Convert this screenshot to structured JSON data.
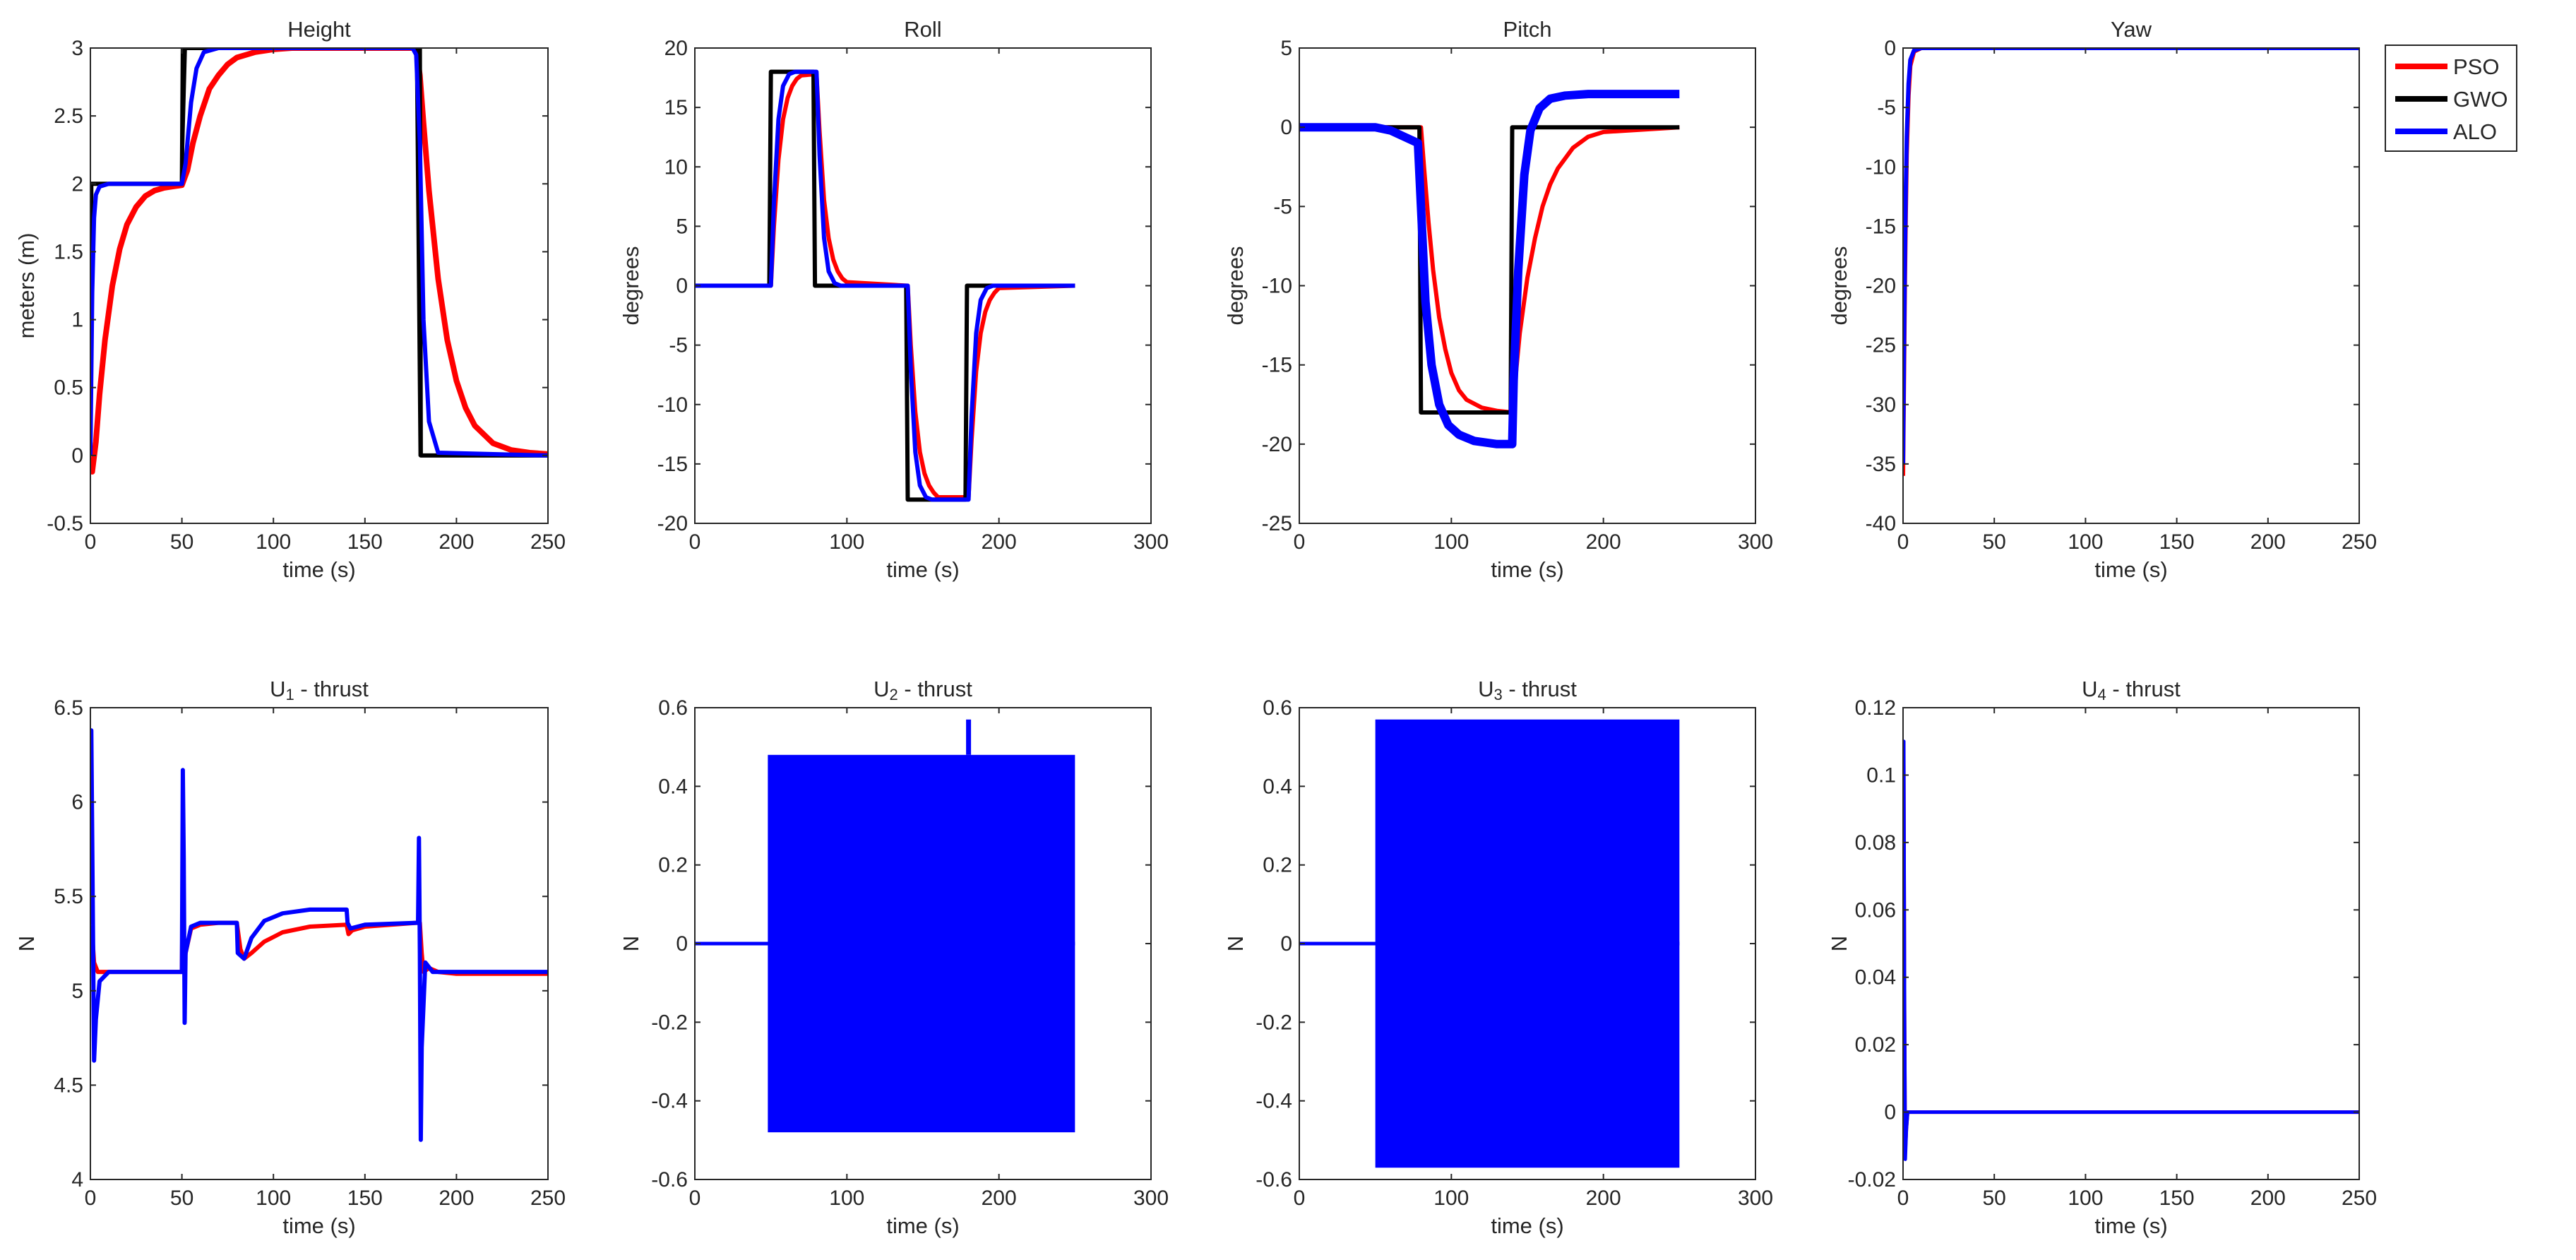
{
  "legend": {
    "placement": "outside top-right",
    "entries": [
      {
        "name": "PSO",
        "color": "#ff0000"
      },
      {
        "name": "GWO",
        "color": "#000000"
      },
      {
        "name": "ALO",
        "color": "#0000ff"
      }
    ]
  },
  "chart_data": [
    {
      "type": "line",
      "title": "Height",
      "xlabel": "time (s)",
      "ylabel": "meters (m)",
      "xlim": [
        0,
        250
      ],
      "ylim": [
        -0.5,
        3
      ],
      "xticks": [
        0,
        50,
        100,
        150,
        200,
        250
      ],
      "yticks": [
        -0.5,
        0,
        0.5,
        1,
        1.5,
        2,
        2.5,
        3
      ],
      "series": [
        {
          "name": "PSO",
          "color": "#ff0000",
          "width": 8,
          "x": [
            0,
            1,
            3,
            5,
            8,
            12,
            16,
            20,
            25,
            30,
            35,
            40,
            45,
            50,
            53,
            56,
            60,
            65,
            70,
            75,
            80,
            90,
            100,
            110,
            120,
            130,
            140,
            150,
            160,
            170,
            178,
            180,
            182,
            185,
            190,
            195,
            200,
            205,
            210,
            220,
            230,
            240,
            250
          ],
          "y": [
            -0.05,
            -0.12,
            0.1,
            0.45,
            0.85,
            1.25,
            1.52,
            1.7,
            1.83,
            1.91,
            1.95,
            1.97,
            1.98,
            1.99,
            2.1,
            2.3,
            2.5,
            2.7,
            2.8,
            2.88,
            2.93,
            2.97,
            2.99,
            3,
            3,
            3,
            3,
            3,
            3,
            3,
            3,
            2.8,
            2.45,
            1.95,
            1.3,
            0.85,
            0.55,
            0.35,
            0.22,
            0.09,
            0.04,
            0.02,
            0.01
          ]
        },
        {
          "name": "GWO",
          "color": "#000000",
          "width": 6,
          "x": [
            0,
            0.5,
            50,
            50.5,
            180,
            180.5,
            250
          ],
          "y": [
            0,
            2,
            2,
            3,
            3,
            0,
            0
          ]
        },
        {
          "name": "GWO",
          "color": "#000000",
          "width": 4,
          "x": [
            0,
            2,
            50,
            52,
            178,
            180,
            250
          ],
          "y": [
            2,
            2,
            2,
            3,
            3,
            0,
            0
          ]
        },
        {
          "name": "ALO",
          "color": "#0000ff",
          "width": 6,
          "x": [
            0,
            1,
            2,
            3,
            5,
            10,
            30,
            50,
            52,
            55,
            58,
            62,
            70,
            100,
            150,
            176,
            178,
            180,
            182,
            185,
            190,
            250
          ],
          "y": [
            0,
            1.2,
            1.75,
            1.92,
            1.98,
            2,
            2,
            2,
            2.15,
            2.6,
            2.85,
            2.97,
            3,
            3,
            3,
            3,
            2.95,
            2.3,
            1.0,
            0.25,
            0.02,
            0
          ]
        }
      ]
    },
    {
      "type": "line",
      "title": "Roll",
      "xlabel": "time (s)",
      "ylabel": "degrees",
      "xlim": [
        0,
        300
      ],
      "ylim": [
        -20,
        20
      ],
      "xticks": [
        0,
        100,
        200,
        300
      ],
      "yticks": [
        -20,
        -15,
        -10,
        -5,
        0,
        5,
        10,
        15,
        20
      ],
      "series": [
        {
          "name": "PSO",
          "color": "#ff0000",
          "width": 6,
          "x": [
            0,
            50,
            52,
            55,
            58,
            61,
            64,
            67,
            70,
            80,
            82,
            85,
            88,
            91,
            94,
            97,
            100,
            140,
            142,
            145,
            148,
            151,
            154,
            157,
            160,
            180,
            182,
            185,
            188,
            191,
            194,
            197,
            200,
            250
          ],
          "y": [
            0,
            0,
            5,
            10.6,
            14,
            15.8,
            16.8,
            17.4,
            17.7,
            17.8,
            13,
            7.2,
            4,
            2.2,
            1.2,
            0.6,
            0.3,
            0,
            -5,
            -10.6,
            -14,
            -15.8,
            -16.8,
            -17.4,
            -17.8,
            -17.8,
            -13,
            -7.2,
            -4,
            -2.2,
            -1.2,
            -0.6,
            -0.2,
            0
          ]
        },
        {
          "name": "GWO",
          "color": "#000000",
          "width": 6,
          "x": [
            0,
            49,
            50,
            78,
            79,
            139,
            140,
            178,
            179,
            250
          ],
          "y": [
            0,
            0,
            18,
            18,
            0,
            0,
            -18,
            -18,
            0,
            0
          ]
        },
        {
          "name": "ALO",
          "color": "#0000ff",
          "width": 6,
          "x": [
            0,
            50,
            52,
            55,
            58,
            62,
            66,
            80,
            82,
            85,
            88,
            92,
            96,
            140,
            142,
            145,
            148,
            152,
            156,
            180,
            182,
            185,
            188,
            192,
            196,
            250
          ],
          "y": [
            0,
            0,
            7,
            14,
            16.8,
            17.8,
            18,
            18,
            11,
            4,
            1.2,
            0.2,
            0,
            0,
            -7,
            -14,
            -16.8,
            -17.8,
            -18,
            -18,
            -11,
            -4,
            -1.2,
            -0.2,
            0,
            0
          ]
        }
      ]
    },
    {
      "type": "line",
      "title": "Pitch",
      "xlabel": "time (s)",
      "ylabel": "degrees",
      "xlim": [
        0,
        300
      ],
      "ylim": [
        -25,
        5
      ],
      "xticks": [
        0,
        100,
        200,
        300
      ],
      "yticks": [
        -25,
        -20,
        -15,
        -10,
        -5,
        0,
        5
      ],
      "series": [
        {
          "name": "PSO",
          "color": "#ff0000",
          "width": 6,
          "x": [
            0,
            50,
            80,
            82,
            85,
            88,
            92,
            96,
            100,
            105,
            110,
            120,
            130,
            140,
            142,
            145,
            150,
            155,
            160,
            165,
            170,
            180,
            190,
            200,
            250
          ],
          "y": [
            0,
            0,
            0,
            -2.5,
            -6,
            -9,
            -12,
            -14,
            -15.5,
            -16.6,
            -17.2,
            -17.7,
            -17.9,
            -18,
            -16,
            -13,
            -9.5,
            -7,
            -5,
            -3.6,
            -2.6,
            -1.3,
            -0.6,
            -0.3,
            0
          ]
        },
        {
          "name": "GWO",
          "color": "#000000",
          "width": 6,
          "x": [
            0,
            79,
            80,
            139,
            140,
            250
          ],
          "y": [
            0,
            0,
            -18,
            -18,
            0,
            0
          ]
        },
        {
          "name": "ALO",
          "color": "#0000ff",
          "width": 12,
          "x": [
            0,
            50,
            60,
            78,
            80,
            83,
            87,
            92,
            98,
            105,
            115,
            130,
            140,
            141,
            144,
            148,
            152,
            158,
            165,
            175,
            190,
            210,
            250
          ],
          "y": [
            0,
            0,
            -0.2,
            -1,
            -5,
            -11,
            -15,
            -17.5,
            -18.8,
            -19.4,
            -19.8,
            -20,
            -20,
            -16,
            -9,
            -3,
            -0.2,
            1.2,
            1.8,
            2,
            2.1,
            2.1,
            2.1
          ]
        }
      ]
    },
    {
      "type": "line",
      "title": "Yaw",
      "xlabel": "time (s)",
      "ylabel": "degrees",
      "xlim": [
        0,
        250
      ],
      "ylim": [
        -40,
        0
      ],
      "xticks": [
        0,
        50,
        100,
        150,
        200,
        250
      ],
      "yticks": [
        -40,
        -35,
        -30,
        -25,
        -20,
        -15,
        -10,
        -5,
        0
      ],
      "series": [
        {
          "name": "PSO",
          "color": "#ff0000",
          "width": 6,
          "x": [
            0,
            0.5,
            1,
            1.5,
            2,
            3,
            4,
            6,
            10,
            250
          ],
          "y": [
            -36,
            -28,
            -20,
            -14,
            -9,
            -4,
            -1.5,
            -0.3,
            0,
            0
          ]
        },
        {
          "name": "ALO",
          "color": "#0000ff",
          "width": 6,
          "x": [
            0,
            0.5,
            1,
            1.5,
            2,
            3,
            4,
            6,
            10,
            250
          ],
          "y": [
            -35,
            -26,
            -18,
            -12,
            -7.5,
            -3,
            -1,
            -0.2,
            0,
            0
          ]
        }
      ]
    },
    {
      "type": "line",
      "title": "U1 - thrust",
      "xlabel": "time (s)",
      "ylabel": "N",
      "xlim": [
        0,
        250
      ],
      "ylim": [
        4,
        6.5
      ],
      "xticks": [
        0,
        50,
        100,
        150,
        200,
        250
      ],
      "yticks": [
        4,
        4.5,
        5,
        5.5,
        6,
        6.5
      ],
      "series": [
        {
          "name": "PSO",
          "color": "#ff0000",
          "width": 6,
          "x": [
            0,
            1,
            2,
            4,
            8,
            50,
            50.5,
            51,
            52,
            55,
            60,
            70,
            80,
            82,
            84,
            88,
            95,
            105,
            120,
            140,
            141,
            143,
            150,
            178,
            180,
            181,
            182,
            185,
            190,
            200,
            250
          ],
          "y": [
            5.3,
            5.3,
            5.15,
            5.1,
            5.1,
            5.1,
            5.6,
            5.1,
            5.2,
            5.33,
            5.35,
            5.36,
            5.36,
            5.22,
            5.17,
            5.2,
            5.26,
            5.31,
            5.34,
            5.35,
            5.3,
            5.32,
            5.34,
            5.36,
            5.36,
            5.2,
            5.1,
            5.12,
            5.1,
            5.09,
            5.09
          ]
        },
        {
          "name": "ALO",
          "color": "#0000ff",
          "width": 6,
          "x": [
            0,
            0.5,
            1,
            2,
            3,
            5,
            10,
            50,
            50.5,
            51,
            51.5,
            52,
            55,
            60,
            80,
            80.5,
            84,
            88,
            95,
            105,
            120,
            140,
            140.5,
            142,
            150,
            178,
            179,
            179.5,
            180,
            180.5,
            181,
            183,
            187,
            195,
            250
          ],
          "y": [
            5.35,
            6.38,
            5.8,
            4.63,
            4.85,
            5.05,
            5.1,
            5.1,
            6.17,
            5.7,
            4.83,
            5.2,
            5.34,
            5.36,
            5.36,
            5.2,
            5.17,
            5.28,
            5.37,
            5.41,
            5.43,
            5.43,
            5.36,
            5.33,
            5.35,
            5.36,
            5.36,
            5.81,
            5.2,
            4.21,
            4.7,
            5.15,
            5.1,
            5.1,
            5.1
          ]
        }
      ]
    },
    {
      "type": "line",
      "title": "U2 - thrust",
      "xlabel": "time (s)",
      "ylabel": "N",
      "xlim": [
        0,
        300
      ],
      "ylim": [
        -0.6,
        0.6
      ],
      "xticks": [
        0,
        100,
        200,
        300
      ],
      "yticks": [
        -0.6,
        -0.4,
        -0.2,
        0,
        0.2,
        0.4,
        0.6
      ],
      "series": [
        {
          "name": "ALO",
          "color": "#0000ff",
          "width": 5,
          "x": [
            0,
            48,
            250
          ],
          "y": [
            0,
            0,
            0
          ]
        }
      ],
      "bands": [
        {
          "color": "#0000ff",
          "x": [
            48,
            250
          ],
          "y": [
            -0.48,
            0.48
          ]
        }
      ],
      "spikes": [
        {
          "color": "#0000ff",
          "x": 180,
          "y": [
            0.48,
            0.57
          ]
        }
      ]
    },
    {
      "type": "line",
      "title": "U3 - thrust",
      "xlabel": "time (s)",
      "ylabel": "N",
      "xlim": [
        0,
        300
      ],
      "ylim": [
        -0.6,
        0.6
      ],
      "xticks": [
        0,
        100,
        200,
        300
      ],
      "yticks": [
        -0.6,
        -0.4,
        -0.2,
        0,
        0.2,
        0.4,
        0.6
      ],
      "series": [
        {
          "name": "ALO",
          "color": "#0000ff",
          "width": 5,
          "x": [
            0,
            50,
            250
          ],
          "y": [
            0,
            0,
            0
          ]
        }
      ],
      "bands": [
        {
          "color": "#0000ff",
          "x": [
            50,
            250
          ],
          "y": [
            -0.57,
            0.57
          ]
        }
      ],
      "spikes": []
    },
    {
      "type": "line",
      "title": "U4 - thrust",
      "xlabel": "time (s)",
      "ylabel": "N",
      "xlim": [
        0,
        250
      ],
      "ylim": [
        -0.02,
        0.12
      ],
      "xticks": [
        0,
        50,
        100,
        150,
        200,
        250
      ],
      "yticks": [
        -0.02,
        0,
        0.02,
        0.04,
        0.06,
        0.08,
        0.1,
        0.12
      ],
      "series": [
        {
          "name": "PSO",
          "color": "#ff0000",
          "width": 5,
          "x": [
            0,
            0.4,
            0.8,
            1.2,
            1.8,
            2.5,
            4,
            250
          ],
          "y": [
            0,
            0.105,
            0.03,
            -0.012,
            -0.005,
            0,
            0,
            0
          ]
        },
        {
          "name": "ALO",
          "color": "#0000ff",
          "width": 5,
          "x": [
            0,
            0.4,
            0.8,
            1.2,
            1.8,
            2.5,
            4,
            250
          ],
          "y": [
            0,
            0.11,
            0.03,
            -0.014,
            -0.005,
            0,
            0,
            0
          ]
        }
      ]
    }
  ]
}
